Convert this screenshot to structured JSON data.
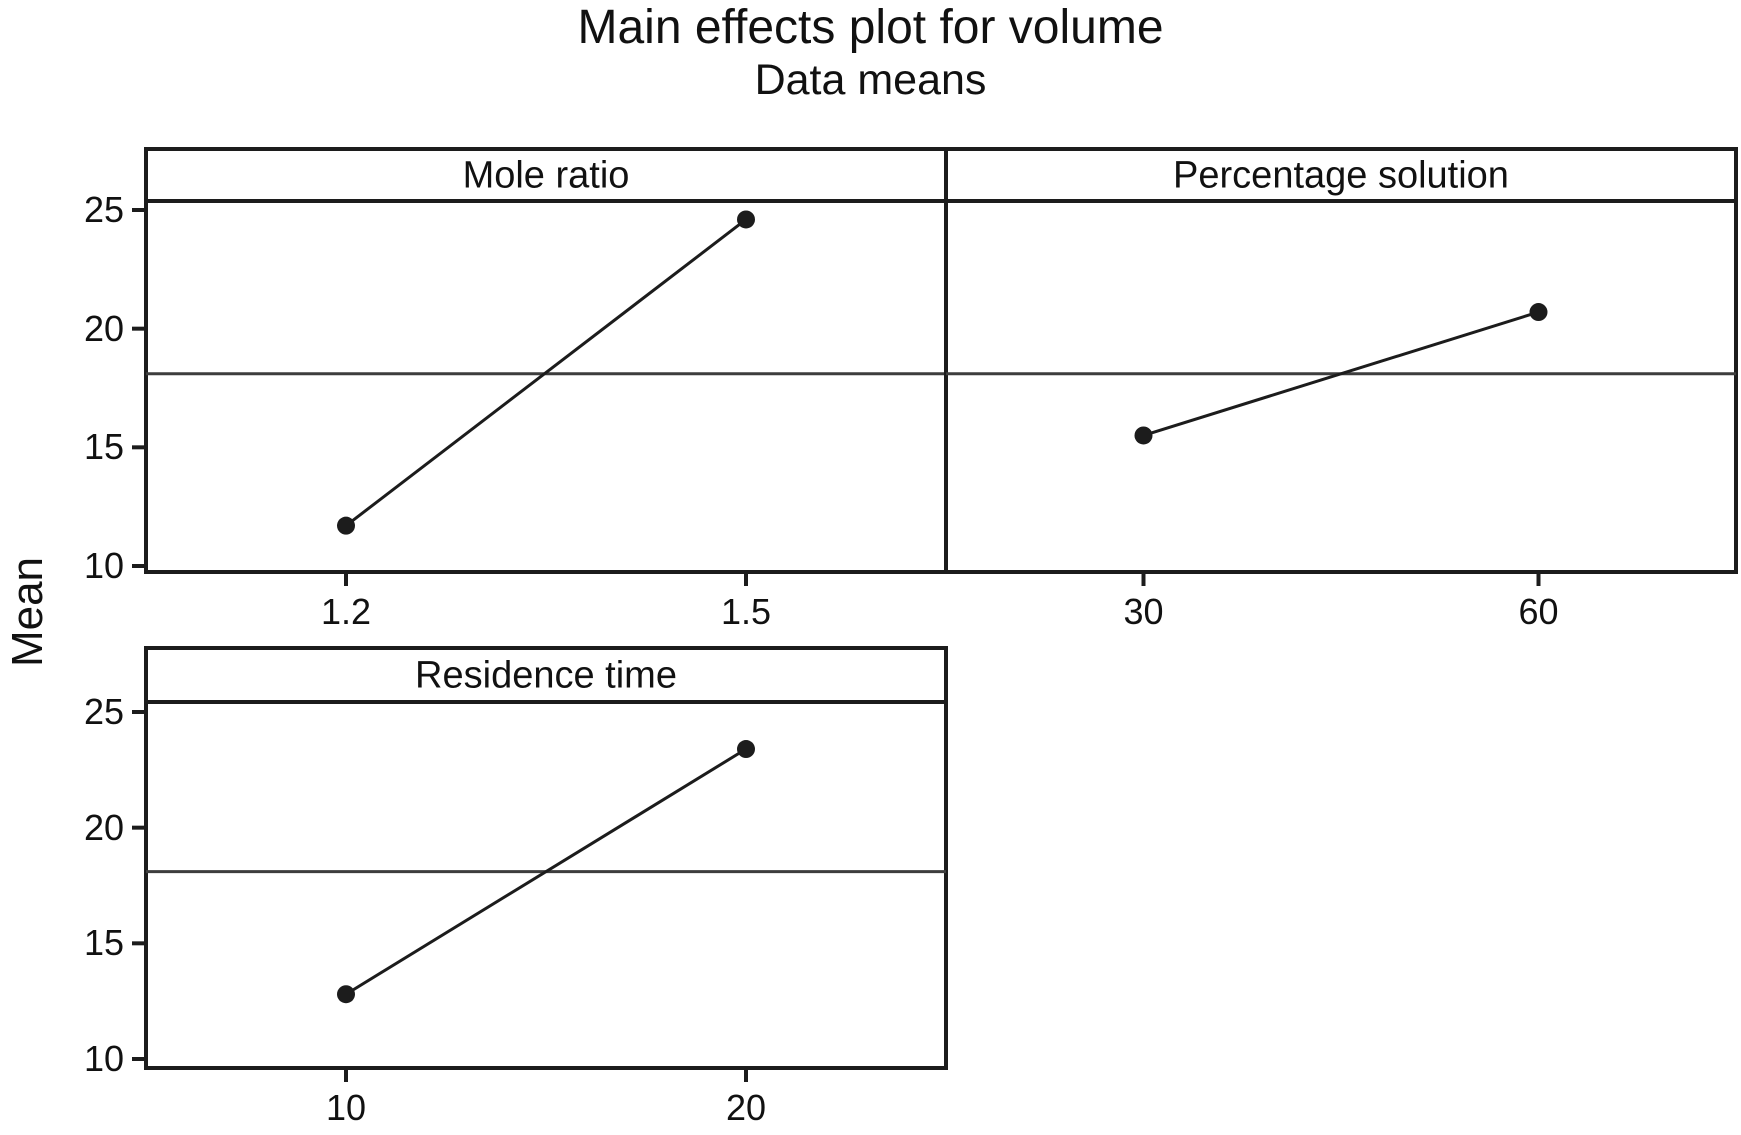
{
  "chart_data": {
    "type": "line",
    "title": "Main effects plot for volume",
    "subtitle": "Data means",
    "ylabel": "Mean",
    "yticks": [
      25,
      20,
      15,
      10
    ],
    "ylim": [
      9.7,
      25.4
    ],
    "grand_mean": 18.1,
    "panels": [
      {
        "title": "Mole ratio",
        "categories": [
          "1.2",
          "1.5"
        ],
        "values": [
          11.7,
          24.6
        ]
      },
      {
        "title": "Percentage solution",
        "categories": [
          "30",
          "60"
        ],
        "values": [
          15.5,
          20.7
        ]
      },
      {
        "title": "Residence time",
        "categories": [
          "10",
          "20"
        ],
        "values": [
          12.8,
          23.4
        ]
      }
    ],
    "marker": "filled-circle",
    "line_style": "solid",
    "legend": "none",
    "grid": "reference-line-at-grand-mean-only"
  }
}
